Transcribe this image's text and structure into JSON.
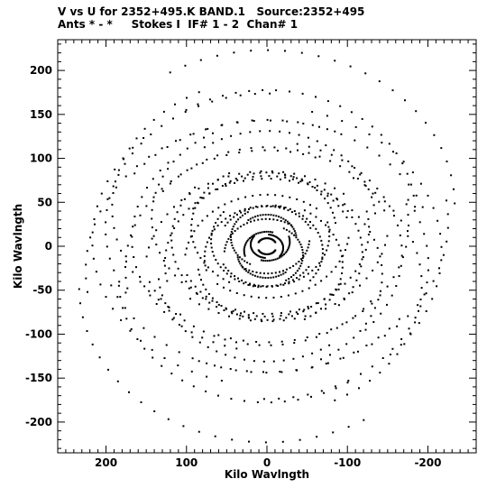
{
  "header": {
    "title_line1": "V vs U for 2352+495.K BAND.1   Source:2352+495",
    "title_line2": "Ants * - *     Stokes I  IF# 1 - 2  Chan# 1"
  },
  "chart_data": {
    "type": "scatter",
    "title": "V vs U for 2352+495.K BAND.1   Source:2352+495",
    "subtitle": "Ants * - *     Stokes I  IF# 1 - 2  Chan# 1",
    "xlabel": "Kilo Wavlngth",
    "ylabel": "Kilo Wavlngth",
    "xlim": [
      260,
      -260
    ],
    "ylim": [
      -235,
      235
    ],
    "x_reversed": true,
    "x_ticks": [
      200,
      100,
      0,
      -100,
      -200
    ],
    "x_tick_labels": [
      "200",
      "100",
      "0",
      "-100",
      "-200"
    ],
    "y_ticks": [
      200,
      150,
      100,
      50,
      0,
      -50,
      -100,
      -150,
      -200
    ],
    "y_tick_labels": [
      "200",
      "150",
      "100",
      "50",
      "0",
      "-50",
      "-100",
      "-150",
      "-200"
    ],
    "grid": false,
    "marker_color": "#000000",
    "uv_model": {
      "description": "baseline tracks (u,v) with symmetric conjugate points",
      "n_baselines": 28,
      "hour_angle_range_deg": [
        -60,
        60
      ],
      "n_samples_per_track": 24
    },
    "series": [
      {
        "values": []
      }
    ]
  }
}
